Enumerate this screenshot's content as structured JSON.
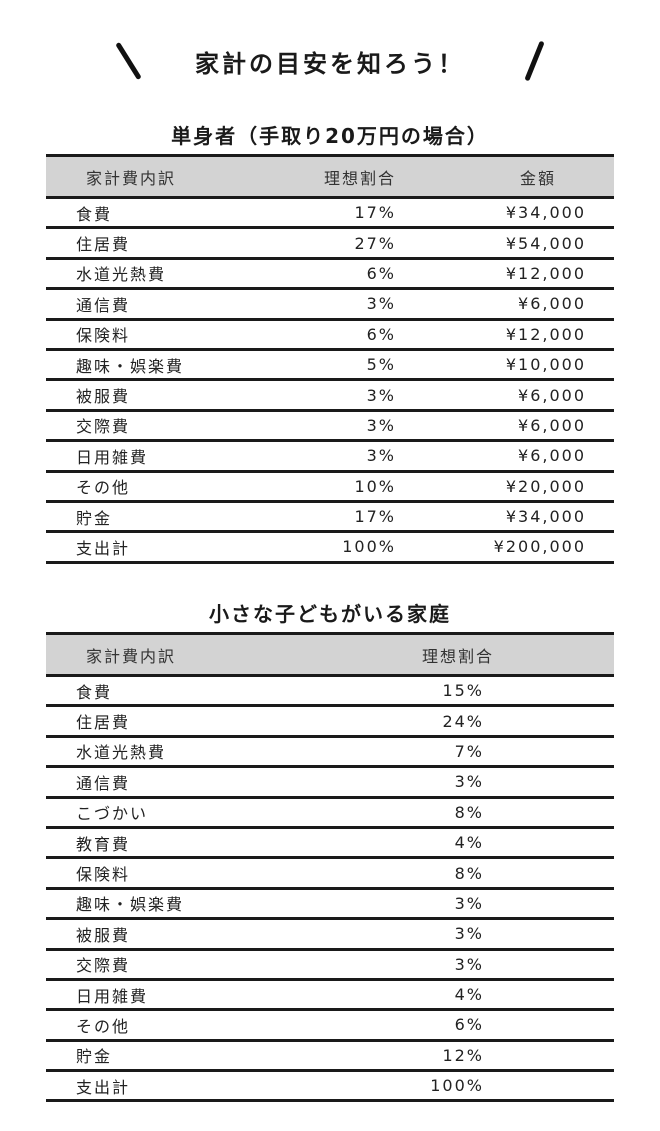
{
  "page": {
    "title": "家計の目安を知ろう！"
  },
  "single": {
    "title": "単身者（手取り20万円の場合）",
    "headers": [
      "家計費内訳",
      "理想割合",
      "金額"
    ],
    "rows": [
      {
        "item": "食費",
        "ratio": "17%",
        "amount": "¥34,000"
      },
      {
        "item": "住居費",
        "ratio": "27%",
        "amount": "¥54,000"
      },
      {
        "item": "水道光熱費",
        "ratio": "6%",
        "amount": "¥12,000"
      },
      {
        "item": "通信費",
        "ratio": "3%",
        "amount": "¥6,000"
      },
      {
        "item": "保険料",
        "ratio": "6%",
        "amount": "¥12,000"
      },
      {
        "item": "趣味・娯楽費",
        "ratio": "5%",
        "amount": "¥10,000"
      },
      {
        "item": "被服費",
        "ratio": "3%",
        "amount": "¥6,000"
      },
      {
        "item": "交際費",
        "ratio": "3%",
        "amount": "¥6,000"
      },
      {
        "item": "日用雑費",
        "ratio": "3%",
        "amount": "¥6,000"
      },
      {
        "item": "その他",
        "ratio": "10%",
        "amount": "¥20,000"
      },
      {
        "item": "貯金",
        "ratio": "17%",
        "amount": "¥34,000"
      },
      {
        "item": "支出計",
        "ratio": "100%",
        "amount": "¥200,000"
      }
    ]
  },
  "family": {
    "title": "小さな子どもがいる家庭",
    "headers": [
      "家計費内訳",
      "理想割合"
    ],
    "rows": [
      {
        "item": "食費",
        "ratio": "15%"
      },
      {
        "item": "住居費",
        "ratio": "24%"
      },
      {
        "item": "水道光熱費",
        "ratio": "7%"
      },
      {
        "item": "通信費",
        "ratio": "3%"
      },
      {
        "item": "こづかい",
        "ratio": "8%"
      },
      {
        "item": "教育費",
        "ratio": "4%"
      },
      {
        "item": "保険料",
        "ratio": "8%"
      },
      {
        "item": "趣味・娯楽費",
        "ratio": "3%"
      },
      {
        "item": "被服費",
        "ratio": "3%"
      },
      {
        "item": "交際費",
        "ratio": "3%"
      },
      {
        "item": "日用雑費",
        "ratio": "4%"
      },
      {
        "item": "その他",
        "ratio": "6%"
      },
      {
        "item": "貯金",
        "ratio": "12%"
      },
      {
        "item": "支出計",
        "ratio": "100%"
      }
    ]
  },
  "colors": {
    "header_bg": "#d3d3d3",
    "rule": "#1a1a1a"
  }
}
